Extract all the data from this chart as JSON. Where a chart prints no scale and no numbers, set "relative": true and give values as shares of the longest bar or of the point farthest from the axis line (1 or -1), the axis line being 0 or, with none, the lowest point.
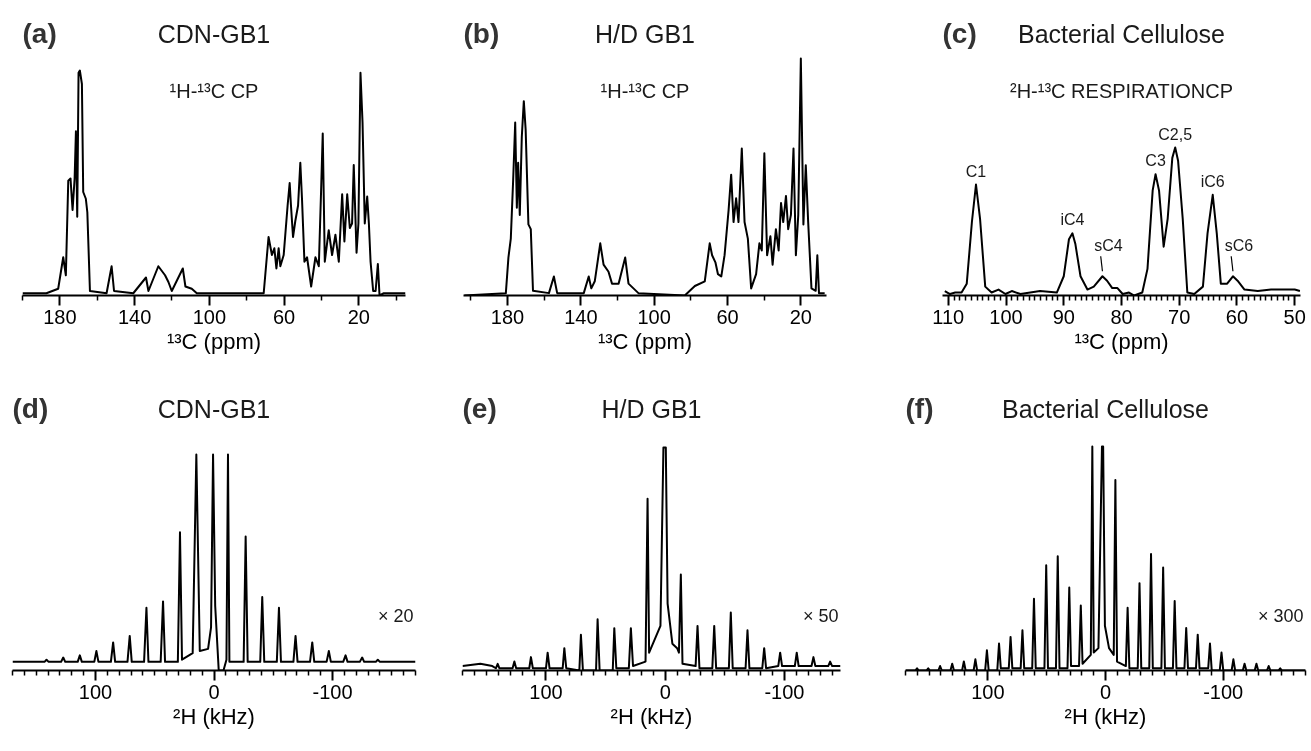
{
  "chart_data": [
    {
      "type": "line",
      "title": "CDN-GB1",
      "subtitle": "¹H-¹³C CP",
      "xlabel": "¹³C (ppm)",
      "annotations": [
        "(a)"
      ],
      "relative": true,
      "xlim": [
        200,
        -5
      ],
      "xticks": [
        {
          "value": 200,
          "label": null
        },
        180,
        {
          "value": 160,
          "label": null
        },
        140,
        {
          "value": 120,
          "label": null
        },
        100,
        {
          "value": 80,
          "label": null
        },
        60,
        {
          "value": 40,
          "label": null
        },
        20,
        {
          "value": 0,
          "label": null
        }
      ],
      "x": [
        200,
        187.2,
        180.9,
        178.2,
        176.8,
        175.5,
        174.3,
        173.2,
        172.1,
        171.4,
        170.7,
        170.0,
        169.3,
        168.2,
        167.5,
        166.1,
        165.3,
        163.9,
        155,
        152.3,
        151,
        140.7,
        133.9,
        132.6,
        127.3,
        125.5,
        123.7,
        121.9,
        120.1,
        114.2,
        112.8,
        109.4,
        106.7,
        70.9,
        68.3,
        66.5,
        65.2,
        64.1,
        62.9,
        62.0,
        60.2,
        58.1,
        57.0,
        56.3,
        55.2,
        54.0,
        52.5,
        51.3,
        50.4,
        49.1,
        47.7,
        45.5,
        43.2,
        41.4,
        40.2,
        39.3,
        38.2,
        36.1,
        34.3,
        32.5,
        30.7,
        28.9,
        27.7,
        26.2,
        24.8,
        23.6,
        22.7,
        21.2,
        20.2,
        19.1,
        18.0,
        16.8,
        15.5,
        14.6,
        13.7,
        12.3,
        11.0,
        9.8,
        8.9,
        6.6,
        -5
      ],
      "series": [
        {
          "color": "#000000",
          "values": [
            0.01,
            0.01,
            0.03,
            0.17,
            0.09,
            0.51,
            0.52,
            0.38,
            0.52,
            0.73,
            0.35,
            0.99,
            1.0,
            0.94,
            0.46,
            0.43,
            0.37,
            0.02,
            0.01,
            0.13,
            0.02,
            0.01,
            0.08,
            0.02,
            0.13,
            0.11,
            0.09,
            0.06,
            0.02,
            0.12,
            0.04,
            0.03,
            0.01,
            0.01,
            0.26,
            0.18,
            0.21,
            0.12,
            0.21,
            0.13,
            0.18,
            0.4,
            0.5,
            0.4,
            0.26,
            0.33,
            0.4,
            0.59,
            0.43,
            0.15,
            0.17,
            0.04,
            0.17,
            0.13,
            0.46,
            0.72,
            0.15,
            0.29,
            0.18,
            0.27,
            0.15,
            0.45,
            0.24,
            0.45,
            0.3,
            0.32,
            0.58,
            0.19,
            0.32,
            0.99,
            0.77,
            0.32,
            0.44,
            0.32,
            0.15,
            0.02,
            0.02,
            0.14,
            0,
            0.01,
            0.01
          ]
        }
      ]
    },
    {
      "type": "line",
      "title": "H/D GB1",
      "subtitle": "¹H-¹³C CP",
      "xlabel": "¹³C (ppm)",
      "annotations": [
        "(b)"
      ],
      "relative": true,
      "xlim": [
        204,
        6
      ],
      "xticks": [
        {
          "value": 200,
          "label": null
        },
        180,
        {
          "value": 160,
          "label": null
        },
        140,
        {
          "value": 120,
          "label": null
        },
        100,
        {
          "value": 80,
          "label": null
        },
        60,
        {
          "value": 40,
          "label": null
        },
        20
      ],
      "x": [
        203.5,
        180.9,
        179.5,
        178.2,
        176.9,
        175.8,
        174.9,
        174.2,
        173.3,
        172.2,
        171.1,
        170.1,
        168.6,
        167.3,
        166.1,
        157.4,
        154.7,
        152.9,
        138.4,
        135.7,
        134.3,
        132.4,
        129.4,
        127.6,
        124.9,
        123.0,
        119.4,
        115.8,
        114.0,
        111.3,
        108.6,
        83.3,
        77.8,
        72.4,
        69.7,
        68.4,
        66.6,
        65.2,
        63.4,
        61.6,
        59.4,
        58.0,
        56.7,
        55.3,
        54.0,
        52.2,
        50.7,
        48.9,
        47.1,
        44.4,
        42.6,
        41.3,
        39.9,
        38.4,
        36.6,
        35.4,
        33.6,
        32.1,
        30.8,
        29.6,
        28.1,
        26.9,
        25.4,
        24.0,
        22.7,
        21.4,
        20.0,
        18.6,
        17.3,
        16.0,
        14.2,
        11.9,
        11.0,
        10.1,
        7
      ],
      "series": [
        {
          "color": "#000000",
          "values": [
            0,
            0.01,
            0.16,
            0.24,
            0.49,
            0.73,
            0.37,
            0.56,
            0.34,
            0.67,
            0.82,
            0.7,
            0.3,
            0.28,
            0.02,
            0.01,
            0.08,
            0.01,
            0.01,
            0.08,
            0.03,
            0.06,
            0.22,
            0.13,
            0.1,
            0.05,
            0.05,
            0.16,
            0.05,
            0.03,
            0.01,
            0,
            0.04,
            0.06,
            0.22,
            0.17,
            0.14,
            0.09,
            0.08,
            0.17,
            0.36,
            0.51,
            0.31,
            0.41,
            0.31,
            0.62,
            0.31,
            0.24,
            0.03,
            0.09,
            0.22,
            0.19,
            0.6,
            0.17,
            0.25,
            0.13,
            0.28,
            0.19,
            0.39,
            0.31,
            0.42,
            0.28,
            0.34,
            0.62,
            0.17,
            0.34,
            1.0,
            0.3,
            0.55,
            0.31,
            0.03,
            0.02,
            0.17,
            0.01,
            0.01
          ]
        }
      ]
    },
    {
      "type": "line",
      "title": "Bacterial Cellulose",
      "subtitle": "²H-¹³C RESPIRATIONCP",
      "xlabel": "¹³C (ppm)",
      "relative": true,
      "xlim": [
        111,
        49
      ],
      "annotations": [
        "(c)",
        {
          "text": "C1",
          "x": 105.2,
          "y": 0.75
        },
        {
          "text": "iC4",
          "x": 88.5,
          "y": 0.42
        },
        {
          "text": "sC4",
          "x": 83.3,
          "y": 0.13
        },
        {
          "text": "C3",
          "x": 74.1,
          "y": 0.82
        },
        {
          "text": "C2,5",
          "x": 70.7,
          "y": 1.0
        },
        {
          "text": "iC6",
          "x": 64.2,
          "y": 0.68
        },
        {
          "text": "sC6",
          "x": 60.7,
          "y": 0.13
        }
      ],
      "xticks": [
        110,
        {
          "value": 109,
          "label": null
        },
        {
          "value": 108,
          "label": null
        },
        {
          "value": 107,
          "label": null
        },
        {
          "value": 106,
          "label": null
        },
        {
          "value": 105,
          "label": null
        },
        {
          "value": 104,
          "label": null
        },
        {
          "value": 103,
          "label": null
        },
        {
          "value": 102,
          "label": null
        },
        {
          "value": 101,
          "label": null
        },
        100,
        {
          "value": 99,
          "label": null
        },
        {
          "value": 98,
          "label": null
        },
        {
          "value": 97,
          "label": null
        },
        {
          "value": 96,
          "label": null
        },
        {
          "value": 95,
          "label": null
        },
        {
          "value": 94,
          "label": null
        },
        {
          "value": 93,
          "label": null
        },
        {
          "value": 92,
          "label": null
        },
        {
          "value": 91,
          "label": null
        },
        90,
        {
          "value": 89,
          "label": null
        },
        {
          "value": 88,
          "label": null
        },
        {
          "value": 87,
          "label": null
        },
        {
          "value": 86,
          "label": null
        },
        {
          "value": 85,
          "label": null
        },
        {
          "value": 84,
          "label": null
        },
        {
          "value": 83,
          "label": null
        },
        {
          "value": 82,
          "label": null
        },
        {
          "value": 81,
          "label": null
        },
        80,
        {
          "value": 79,
          "label": null
        },
        {
          "value": 78,
          "label": null
        },
        {
          "value": 77,
          "label": null
        },
        {
          "value": 76,
          "label": null
        },
        {
          "value": 75,
          "label": null
        },
        {
          "value": 74,
          "label": null
        },
        {
          "value": 73,
          "label": null
        },
        {
          "value": 72,
          "label": null
        },
        {
          "value": 71,
          "label": null
        },
        70,
        {
          "value": 69,
          "label": null
        },
        {
          "value": 68,
          "label": null
        },
        {
          "value": 67,
          "label": null
        },
        {
          "value": 66,
          "label": null
        },
        {
          "value": 65,
          "label": null
        },
        {
          "value": 64,
          "label": null
        },
        {
          "value": 63,
          "label": null
        },
        {
          "value": 62,
          "label": null
        },
        {
          "value": 61,
          "label": null
        },
        60,
        {
          "value": 59,
          "label": null
        },
        {
          "value": 58,
          "label": null
        },
        {
          "value": 57,
          "label": null
        },
        {
          "value": 56,
          "label": null
        },
        {
          "value": 55,
          "label": null
        },
        {
          "value": 54,
          "label": null
        },
        {
          "value": 53,
          "label": null
        },
        {
          "value": 52,
          "label": null
        },
        {
          "value": 51,
          "label": null
        },
        50
      ],
      "x": [
        110.6,
        109.7,
        108.8,
        107.7,
        106.8,
        105.9,
        105.2,
        104.5,
        103.6,
        102.5,
        101.3,
        100.1,
        99.0,
        97.5,
        94.1,
        91.2,
        90.0,
        89.1,
        88.5,
        88.0,
        87.1,
        85.9,
        84.8,
        83.3,
        82.5,
        81.6,
        80.7,
        79.8,
        78.7,
        77.8,
        76.4,
        75.5,
        74.6,
        74.1,
        73.5,
        72.7,
        72.0,
        71.2,
        70.7,
        70.2,
        69.4,
        68.6,
        67.4,
        65.9,
        65.1,
        64.2,
        63.5,
        62.8,
        61.7,
        60.7,
        59.9,
        58.7,
        56.4,
        54.1,
        51.8,
        50.0,
        49.1
      ],
      "series": [
        {
          "color": "#000000",
          "values": [
            0.03,
            0.01,
            0.02,
            0.02,
            0.08,
            0.5,
            0.75,
            0.52,
            0.06,
            0.02,
            0.04,
            0.01,
            0.03,
            0.01,
            0.03,
            0.02,
            0.13,
            0.38,
            0.42,
            0.35,
            0.13,
            0.04,
            0.06,
            0.13,
            0.1,
            0.05,
            0.05,
            0.01,
            0.02,
            0,
            0.02,
            0.18,
            0.71,
            0.82,
            0.71,
            0.33,
            0.52,
            0.93,
            1.0,
            0.91,
            0.52,
            0.02,
            0.01,
            0.06,
            0.42,
            0.68,
            0.42,
            0.08,
            0.08,
            0.13,
            0.1,
            0.04,
            0.03,
            0.04,
            0.04,
            0.04,
            0.03
          ]
        }
      ]
    },
    {
      "type": "line",
      "title": "CDN-GB1",
      "xlabel": "²H (kHz)",
      "annotations": [
        "(d)",
        "× 20"
      ],
      "relative": true,
      "xlim": [
        170,
        -170
      ],
      "xticks": [
        {
          "value": 170,
          "label": null
        },
        {
          "value": 160,
          "label": null
        },
        {
          "value": 150,
          "label": null
        },
        {
          "value": 140,
          "label": null
        },
        {
          "value": 130,
          "label": null
        },
        {
          "value": 120,
          "label": null
        },
        {
          "value": 110,
          "label": null
        },
        100,
        {
          "value": 90,
          "label": null
        },
        {
          "value": 80,
          "label": null
        },
        {
          "value": 70,
          "label": null
        },
        {
          "value": 60,
          "label": null
        },
        {
          "value": 50,
          "label": null
        },
        {
          "value": 40,
          "label": null
        },
        {
          "value": 30,
          "label": null
        },
        {
          "value": 20,
          "label": null
        },
        {
          "value": 10,
          "label": null
        },
        0,
        {
          "value": -10,
          "label": null
        },
        {
          "value": -20,
          "label": null
        },
        {
          "value": -30,
          "label": null
        },
        {
          "value": -40,
          "label": null
        },
        {
          "value": -50,
          "label": null
        },
        {
          "value": -60,
          "label": null
        },
        {
          "value": -70,
          "label": null
        },
        {
          "value": -80,
          "label": null
        },
        {
          "value": -90,
          "label": null
        },
        -100,
        {
          "value": -110,
          "label": null
        },
        {
          "value": -120,
          "label": null
        },
        {
          "value": -130,
          "label": null
        },
        {
          "value": -140,
          "label": null
        },
        {
          "value": -150,
          "label": null
        },
        {
          "value": -160,
          "label": null
        },
        {
          "value": -170,
          "label": null
        }
      ],
      "x": [
        170,
        143,
        141.3,
        139.5,
        129,
        127.2,
        125.5,
        115,
        113.2,
        111.5,
        101,
        99.2,
        97.5,
        87,
        85.1,
        83.4,
        73,
        71.1,
        69.4,
        59,
        57.0,
        55.3,
        45,
        43.0,
        41.3,
        30.5,
        28.7,
        27.0,
        18,
        14.9,
        12,
        5,
        2.5,
        0.8,
        -1,
        -4,
        -8,
        -10.5,
        -11.8,
        -13,
        -25,
        -26.7,
        -28.4,
        -39,
        -40.7,
        -42.4,
        -53,
        -54.8,
        -56.5,
        -67,
        -68.8,
        -70.5,
        -81,
        -82.9,
        -84.6,
        -95,
        -96.9,
        -98.6,
        -109,
        -111.0,
        -112.7,
        -123,
        -125.0,
        -126.7,
        -136.5,
        -138.2,
        -140,
        -170
      ],
      "series": [
        {
          "color": "#000000",
          "values": [
            0.04,
            0.04,
            0.05,
            0.04,
            0.04,
            0.06,
            0.04,
            0.04,
            0.07,
            0.04,
            0.04,
            0.09,
            0.04,
            0.04,
            0.13,
            0.04,
            0.04,
            0.16,
            0.04,
            0.04,
            0.29,
            0.04,
            0.04,
            0.32,
            0.04,
            0.04,
            0.64,
            0.05,
            0.08,
            1.0,
            0.09,
            0.1,
            0.2,
            1.0,
            0.3,
            0,
            0,
            0.05,
            1.0,
            0.04,
            0.04,
            0.62,
            0.04,
            0.04,
            0.34,
            0.04,
            0.04,
            0.29,
            0.04,
            0.04,
            0.16,
            0.04,
            0.04,
            0.13,
            0.04,
            0.04,
            0.09,
            0.04,
            0.04,
            0.07,
            0.04,
            0.04,
            0.06,
            0.04,
            0.04,
            0.05,
            0.04,
            0.04
          ]
        }
      ]
    },
    {
      "type": "line",
      "title": "H/D GB1",
      "xlabel": "²H (kHz)",
      "annotations": [
        "(e)",
        "× 50"
      ],
      "relative": true,
      "xlim": [
        170,
        -147
      ],
      "xticks": [
        {
          "value": 170,
          "label": null
        },
        {
          "value": 160,
          "label": null
        },
        {
          "value": 150,
          "label": null
        },
        {
          "value": 140,
          "label": null
        },
        {
          "value": 130,
          "label": null
        },
        {
          "value": 120,
          "label": null
        },
        {
          "value": 110,
          "label": null
        },
        100,
        {
          "value": 90,
          "label": null
        },
        {
          "value": 80,
          "label": null
        },
        {
          "value": 70,
          "label": null
        },
        {
          "value": 60,
          "label": null
        },
        {
          "value": 50,
          "label": null
        },
        {
          "value": 40,
          "label": null
        },
        {
          "value": 30,
          "label": null
        },
        {
          "value": 20,
          "label": null
        },
        {
          "value": 10,
          "label": null
        },
        0,
        {
          "value": -10,
          "label": null
        },
        {
          "value": -20,
          "label": null
        },
        {
          "value": -30,
          "label": null
        },
        {
          "value": -40,
          "label": null
        },
        {
          "value": -50,
          "label": null
        },
        {
          "value": -60,
          "label": null
        },
        {
          "value": -70,
          "label": null
        },
        {
          "value": -80,
          "label": null
        },
        {
          "value": -90,
          "label": null
        },
        -100,
        {
          "value": -110,
          "label": null
        },
        {
          "value": -120,
          "label": null
        },
        {
          "value": -130,
          "label": null
        },
        {
          "value": -140,
          "label": null
        }
      ],
      "x": [
        170,
        155,
        145,
        142,
        140.5,
        139,
        128,
        126.5,
        125,
        114,
        112.6,
        111,
        100,
        98.6,
        97,
        86,
        84.6,
        83,
        72,
        70.7,
        69,
        58,
        56.7,
        55,
        44,
        42.7,
        41,
        30.5,
        28.8,
        27,
        16.5,
        14.8,
        13.5,
        4,
        1.5,
        -0.5,
        -2,
        -6,
        -10,
        -11.5,
        -13.1,
        -14.5,
        -25.5,
        -27.1,
        -28.7,
        -39.5,
        -41.1,
        -42.7,
        -53.4,
        -55.0,
        -56.6,
        -67.4,
        -69.0,
        -70.6,
        -81.4,
        -83.0,
        -84.6,
        -94.8,
        -96.4,
        -98,
        -108.7,
        -110.3,
        -111.9,
        -122.7,
        -124.3,
        -125.9,
        -136.7,
        -138.3,
        -140,
        -147
      ],
      "series": [
        {
          "color": "#000000",
          "values": [
            0.02,
            0.03,
            0.02,
            0.01,
            0.03,
            0.01,
            0.01,
            0.04,
            0.01,
            0.01,
            0.06,
            0.01,
            0.01,
            0.08,
            0.01,
            0.01,
            0.1,
            0.01,
            0,
            0.16,
            0,
            0,
            0.23,
            0,
            0,
            0.19,
            0.01,
            0.01,
            0.19,
            0.02,
            0.04,
            0.77,
            0.08,
            0.2,
            1.0,
            1.0,
            0.3,
            0.12,
            0.1,
            0.08,
            0.43,
            0.03,
            0.02,
            0.2,
            0.01,
            0.01,
            0.2,
            0.01,
            0.01,
            0.26,
            0.01,
            0.01,
            0.18,
            0.01,
            0.01,
            0.1,
            0.01,
            0.02,
            0.08,
            0.02,
            0.02,
            0.08,
            0.02,
            0.02,
            0.06,
            0.02,
            0.02,
            0.04,
            0.02,
            0.02
          ]
        }
      ]
    },
    {
      "type": "line",
      "title": "Bacterial Cellulose",
      "xlabel": "²H (kHz)",
      "annotations": [
        "(f)",
        "× 300"
      ],
      "relative": true,
      "xlim": [
        170,
        -170
      ],
      "xticks": [
        {
          "value": 170,
          "label": null
        },
        {
          "value": 160,
          "label": null
        },
        {
          "value": 150,
          "label": null
        },
        {
          "value": 140,
          "label": null
        },
        {
          "value": 130,
          "label": null
        },
        {
          "value": 120,
          "label": null
        },
        {
          "value": 110,
          "label": null
        },
        100,
        {
          "value": 90,
          "label": null
        },
        {
          "value": 80,
          "label": null
        },
        {
          "value": 70,
          "label": null
        },
        {
          "value": 60,
          "label": null
        },
        {
          "value": 50,
          "label": null
        },
        {
          "value": 40,
          "label": null
        },
        {
          "value": 30,
          "label": null
        },
        {
          "value": 20,
          "label": null
        },
        {
          "value": 10,
          "label": null
        },
        0,
        {
          "value": -10,
          "label": null
        },
        {
          "value": -20,
          "label": null
        },
        {
          "value": -30,
          "label": null
        },
        {
          "value": -40,
          "label": null
        },
        {
          "value": -50,
          "label": null
        },
        {
          "value": -60,
          "label": null
        },
        {
          "value": -70,
          "label": null
        },
        {
          "value": -80,
          "label": null
        },
        {
          "value": -90,
          "label": null
        },
        -100,
        {
          "value": -110,
          "label": null
        },
        {
          "value": -120,
          "label": null
        },
        {
          "value": -130,
          "label": null
        },
        {
          "value": -140,
          "label": null
        },
        {
          "value": -150,
          "label": null
        },
        {
          "value": -160,
          "label": null
        },
        {
          "value": -170,
          "label": null
        }
      ],
      "x": [
        170,
        161.7,
        160.2,
        158.7,
        152.2,
        150.7,
        149.2,
        142.1,
        140.6,
        139.1,
        131.8,
        130.3,
        128.8,
        121.9,
        120.4,
        118.9,
        112.1,
        110.6,
        109.1,
        102.3,
        100.8,
        99.3,
        92,
        90.5,
        89,
        82.2,
        80.7,
        79.2,
        72.1,
        70.6,
        69.1,
        62.3,
        60.8,
        59.3,
        51.9,
        50.4,
        48.9,
        42.1,
        40.6,
        39.1,
        32.3,
        30.8,
        29.3,
        22.5,
        21.0,
        19.5,
        12.5,
        11.2,
        10,
        6,
        3,
        2,
        0.5,
        -3,
        -7,
        -8.4,
        -9.8,
        -17.3,
        -18.8,
        -20.3,
        -27.4,
        -28.9,
        -30.4,
        -37.2,
        -38.7,
        -40.2,
        -47.5,
        -49.0,
        -50.5,
        -57.3,
        -58.8,
        -60.3,
        -67.1,
        -68.6,
        -70.1,
        -76.9,
        -78.4,
        -79.9,
        -87.3,
        -88.8,
        -90.3,
        -97.1,
        -98.6,
        -100.1,
        -107.2,
        -108.7,
        -110.2,
        -116.7,
        -118.2,
        -119.7,
        -126.8,
        -128.3,
        -129.8,
        -137.2,
        -138.7,
        -140.2,
        -147,
        -148.5,
        -150,
        -170
      ],
      "series": [
        {
          "color": "#000000",
          "values": [
            0,
            0,
            0.01,
            0,
            0,
            0.01,
            0,
            0,
            0.02,
            0,
            0,
            0.03,
            0,
            0,
            0.04,
            0,
            0,
            0.05,
            0,
            0,
            0.09,
            0,
            0,
            0.12,
            0.01,
            0.01,
            0.15,
            0.01,
            0.01,
            0.18,
            0.01,
            0.01,
            0.32,
            0.01,
            0.01,
            0.47,
            0.01,
            0.01,
            0.51,
            0.01,
            0.01,
            0.37,
            0.02,
            0.02,
            0.29,
            0.03,
            0.07,
            1.0,
            0.08,
            0.1,
            1.0,
            1.0,
            0.2,
            0.1,
            0.07,
            0.85,
            0.04,
            0.02,
            0.28,
            0.01,
            0.01,
            0.39,
            0.01,
            0.01,
            0.52,
            0.01,
            0.01,
            0.46,
            0.01,
            0.01,
            0.31,
            0.01,
            0.01,
            0.19,
            0.01,
            0.01,
            0.16,
            0.01,
            0.01,
            0.12,
            0,
            0,
            0.08,
            0,
            0,
            0.05,
            0,
            0,
            0.03,
            0,
            0,
            0.03,
            0,
            0,
            0.02,
            0,
            0,
            0.01,
            0,
            0
          ]
        }
      ]
    }
  ]
}
